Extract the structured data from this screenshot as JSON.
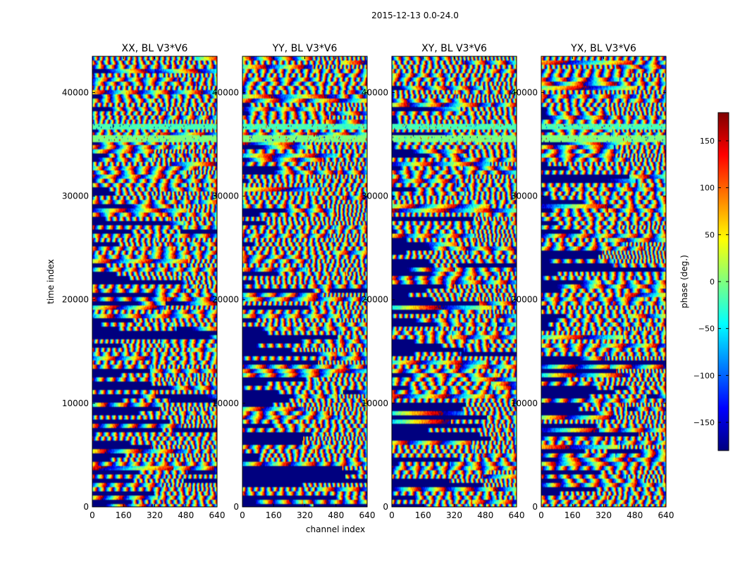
{
  "figure": {
    "suptitle": "2015-12-13 0.0-24.0",
    "xlabel": "channel index",
    "ylabel": "time index"
  },
  "chart_data": {
    "type": "heatmap",
    "x": {
      "label": "channel index",
      "range": [
        0,
        640
      ],
      "ticks": [
        0,
        160,
        320,
        480,
        640
      ]
    },
    "y": {
      "label": "time index",
      "range": [
        0,
        43500
      ],
      "ticks": [
        0,
        10000,
        20000,
        30000,
        40000
      ]
    },
    "panels": [
      {
        "title": "XX, BL V3*V6"
      },
      {
        "title": "YY, BL V3*V6"
      },
      {
        "title": "XY, BL V3*V6"
      },
      {
        "title": "YX, BL V3*V6"
      }
    ],
    "colorbar": {
      "label": "phase (deg.)",
      "range": [
        -180,
        180
      ],
      "ticks": [
        -150,
        -100,
        -50,
        0,
        50,
        100,
        150
      ],
      "colormap": "jet",
      "colors": [
        "#00007f",
        "#0000ff",
        "#007fff",
        "#00ffff",
        "#7fff7f",
        "#ffff00",
        "#ff7f00",
        "#ff0000",
        "#7f0000"
      ]
    },
    "uniform_bands": [
      {
        "y_range": [
          35300,
          35900
        ],
        "value": 0
      },
      {
        "y_range": [
          36500,
          37100
        ],
        "value": -20
      }
    ]
  }
}
